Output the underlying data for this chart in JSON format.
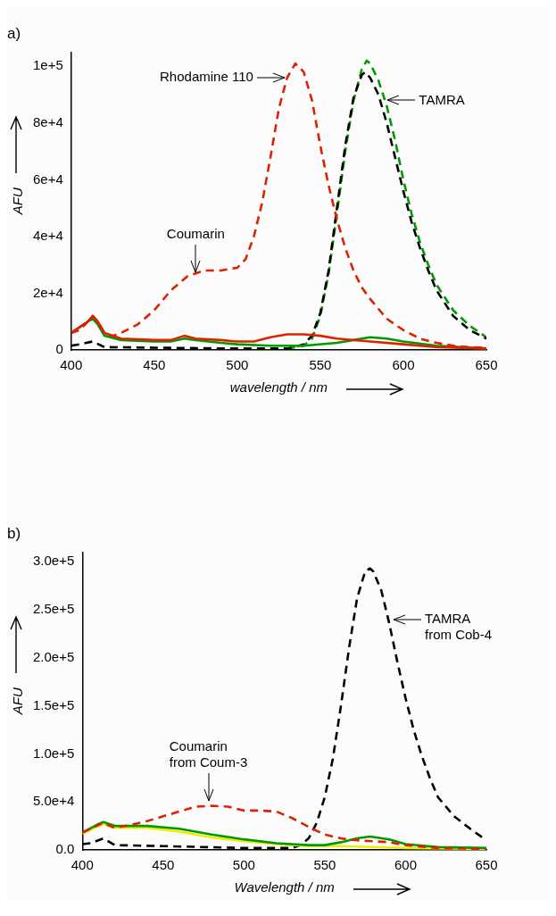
{
  "chart_data": [
    {
      "type": "line",
      "title": "a)",
      "xlabel": "wavelength / nm",
      "ylabel": "AFU",
      "xlim": [
        400,
        650
      ],
      "xticks": [
        400,
        450,
        500,
        550,
        600,
        650
      ],
      "ylim": [
        0,
        105000
      ],
      "yticks": [
        {
          "value": 0,
          "label": "0"
        },
        {
          "value": 20000,
          "label": "2e+4"
        },
        {
          "value": 40000,
          "label": "4e+4"
        },
        {
          "value": 60000,
          "label": "6e+4"
        },
        {
          "value": 80000,
          "label": "8e+4"
        },
        {
          "value": 100000,
          "label": "1e+5"
        }
      ],
      "grid": false,
      "legend": false,
      "annotations": [
        {
          "text": "Rhodamine 110",
          "x": 529,
          "y": 96000
        },
        {
          "text": "TAMRA",
          "x": 590,
          "y": 88000
        },
        {
          "text": "Coumarin",
          "x": 475,
          "y": 27000
        }
      ],
      "series": [
        {
          "color": "#dd2200",
          "line_style": "dashed",
          "x": [
            400,
            405,
            410,
            413,
            416,
            420,
            425,
            430,
            440,
            450,
            460,
            470,
            480,
            490,
            500,
            505,
            510,
            515,
            520,
            525,
            530,
            535,
            540,
            545,
            550,
            555,
            560,
            565,
            570,
            575,
            580,
            590,
            600,
            610,
            620,
            630,
            640,
            650
          ],
          "values": [
            6000,
            7000,
            10000,
            12000,
            10000,
            6000,
            5000,
            6000,
            9000,
            14000,
            21000,
            26000,
            28000,
            28000,
            29000,
            32000,
            40000,
            52000,
            68000,
            85000,
            96000,
            101000,
            98000,
            88000,
            72000,
            58000,
            46000,
            36000,
            28000,
            22000,
            18000,
            11000,
            7000,
            4000,
            2500,
            1500,
            1000,
            800
          ]
        },
        {
          "color": "#dd2200",
          "line_style": "solid",
          "x": [
            400,
            410,
            413,
            416,
            420,
            430,
            450,
            460,
            468,
            475,
            490,
            500,
            510,
            520,
            530,
            540,
            550,
            560,
            580,
            600,
            620,
            650
          ],
          "values": [
            6000,
            10000,
            12000,
            10000,
            6000,
            4000,
            3500,
            3500,
            5000,
            4000,
            3500,
            3000,
            3000,
            4500,
            5500,
            5500,
            5000,
            4000,
            3000,
            2000,
            1000,
            500
          ]
        },
        {
          "color": "#009900",
          "line_style": "solid",
          "x": [
            400,
            410,
            413,
            416,
            420,
            430,
            450,
            460,
            468,
            475,
            490,
            500,
            520,
            540,
            560,
            570,
            580,
            590,
            600,
            620,
            650
          ],
          "values": [
            6000,
            10000,
            11000,
            9000,
            5000,
            3500,
            3000,
            3000,
            4000,
            3500,
            2500,
            2000,
            1500,
            1500,
            2500,
            3500,
            4500,
            4000,
            3000,
            1500,
            500
          ]
        },
        {
          "color": "#000000",
          "line_style": "dashed",
          "x": [
            400,
            405,
            413,
            420,
            450,
            500,
            530,
            540,
            545,
            550,
            555,
            560,
            565,
            570,
            575,
            577,
            580,
            585,
            590,
            595,
            600,
            605,
            610,
            615,
            620,
            630,
            640,
            650
          ],
          "values": [
            1500,
            2000,
            3000,
            1000,
            800,
            500,
            500,
            2000,
            5000,
            13000,
            28000,
            50000,
            72000,
            89000,
            97000,
            98000,
            96000,
            90000,
            80000,
            68000,
            56000,
            45000,
            36000,
            28000,
            21000,
            12000,
            7000,
            4000
          ]
        },
        {
          "color": "#009900",
          "line_style": "dashed",
          "x": [
            530,
            540,
            545,
            550,
            555,
            560,
            565,
            570,
            575,
            578,
            580,
            585,
            590,
            595,
            600,
            605,
            610,
            615,
            620,
            630,
            640,
            650
          ],
          "values": [
            500,
            1500,
            4000,
            12000,
            27000,
            48000,
            70000,
            88000,
            99000,
            102000,
            101000,
            95000,
            86000,
            74000,
            60000,
            48000,
            38000,
            30000,
            23000,
            14000,
            8500,
            4500
          ]
        }
      ]
    },
    {
      "type": "line",
      "title": "b)",
      "xlabel": "Wavelength / nm",
      "ylabel": "AFU",
      "xlim": [
        400,
        650
      ],
      "xticks": [
        400,
        450,
        500,
        550,
        600,
        650
      ],
      "ylim": [
        0,
        310000
      ],
      "yticks": [
        {
          "value": 0,
          "label": "0.0"
        },
        {
          "value": 50000,
          "label": "5.0e+4"
        },
        {
          "value": 100000,
          "label": "1.0e+5"
        },
        {
          "value": 150000,
          "label": "1.5e+5"
        },
        {
          "value": 200000,
          "label": "2.0e+5"
        },
        {
          "value": 250000,
          "label": "2.5e+5"
        },
        {
          "value": 300000,
          "label": "3.0e+5"
        }
      ],
      "grid": false,
      "legend": false,
      "annotations": [
        {
          "text": "Coumarin\nfrom Coum-3",
          "x": 478,
          "y": 50000
        },
        {
          "text": "TAMRA\nfrom Cob-4",
          "x": 592,
          "y": 240000
        }
      ],
      "series": [
        {
          "color": "#dd2200",
          "line_style": "dashed",
          "x": [
            400,
            410,
            413,
            420,
            430,
            440,
            450,
            460,
            470,
            480,
            490,
            500,
            510,
            520,
            530,
            540,
            550,
            560,
            570,
            580,
            590,
            600,
            620,
            650
          ],
          "values": [
            18000,
            26000,
            28000,
            23000,
            26000,
            30000,
            35000,
            40000,
            45000,
            46000,
            45000,
            41000,
            41000,
            40000,
            33000,
            24000,
            16000,
            12000,
            10000,
            9000,
            8000,
            5000,
            2000,
            1000
          ]
        },
        {
          "color": "#009900",
          "line_style": "solid",
          "x": [
            400,
            410,
            413,
            420,
            440,
            460,
            480,
            500,
            520,
            540,
            550,
            560,
            570,
            578,
            590,
            600,
            620,
            650
          ],
          "values": [
            18000,
            27000,
            29000,
            25000,
            25000,
            22000,
            16000,
            11000,
            7000,
            5000,
            5000,
            8000,
            12000,
            14000,
            11000,
            6000,
            3000,
            2000
          ]
        },
        {
          "color": "#eeee00",
          "line_style": "solid",
          "x": [
            400,
            410,
            413,
            420,
            440,
            460,
            480,
            500,
            520,
            540,
            560,
            580,
            600,
            650
          ],
          "values": [
            17000,
            25000,
            27000,
            23000,
            23000,
            19000,
            13000,
            9000,
            6000,
            4000,
            4000,
            3000,
            2000,
            1000
          ]
        },
        {
          "color": "#000000",
          "line_style": "dashed",
          "x": [
            400,
            405,
            413,
            420,
            450,
            500,
            530,
            535,
            540,
            545,
            550,
            555,
            560,
            565,
            570,
            575,
            578,
            580,
            585,
            590,
            595,
            600,
            605,
            610,
            615,
            620,
            630,
            640,
            650
          ],
          "values": [
            6000,
            7000,
            12000,
            5000,
            4000,
            2000,
            2000,
            5000,
            12000,
            28000,
            55000,
            95000,
            150000,
            210000,
            262000,
            290000,
            293000,
            290000,
            270000,
            235000,
            195000,
            158000,
            125000,
            98000,
            75000,
            55000,
            35000,
            22000,
            10000
          ]
        }
      ]
    }
  ]
}
